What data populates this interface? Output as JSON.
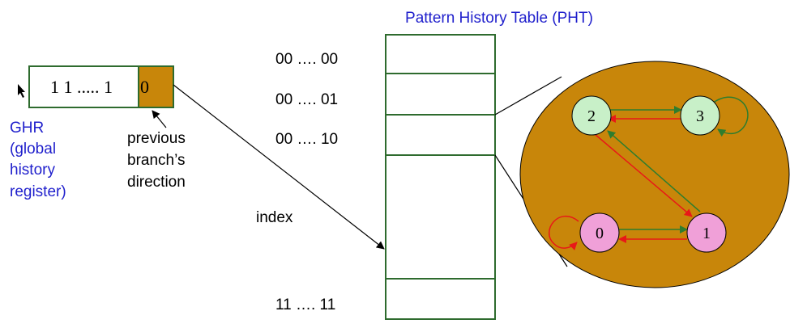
{
  "pht_title": "Pattern History Table (PHT)",
  "ghr": {
    "bits": "1 1 ..... 1",
    "last_bit": "0",
    "label_lines": [
      "GHR",
      "(global",
      "history",
      "register)"
    ],
    "previous_label_lines": [
      "previous",
      "branch’s",
      "direction"
    ]
  },
  "pht": {
    "row_labels": [
      "00 …. 00",
      "00 …. 01",
      "00 …. 10",
      "11 ….  11"
    ],
    "index_label": "index"
  },
  "fsm": {
    "states": [
      "0",
      "1",
      "2",
      "3"
    ]
  },
  "colors": {
    "blue_text": "#1f1fcc",
    "ghr_border": "#2e6b2e",
    "ghr_fill": "#c8860a",
    "pht_border": "#2e6b2e",
    "fsm_bg": "#c8860a",
    "state_green": "#c8f0c8",
    "state_pink": "#f0a0d8",
    "arrow_green": "#2e7d2e",
    "arrow_red": "#e81818"
  }
}
